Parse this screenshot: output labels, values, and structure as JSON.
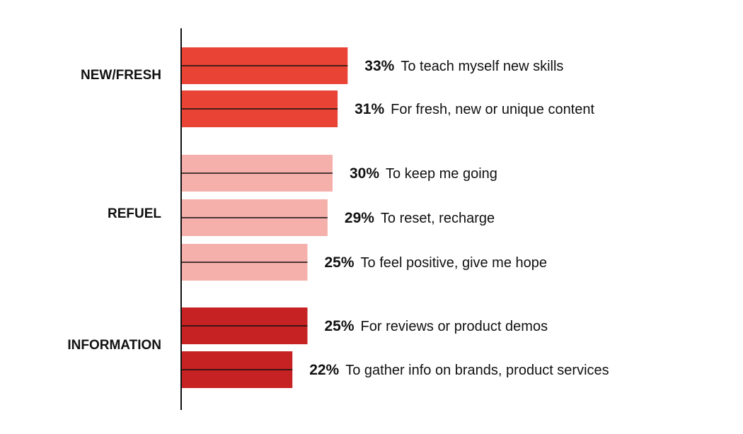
{
  "chart_data": {
    "type": "bar",
    "orientation": "horizontal",
    "unit": "%",
    "colors": {
      "NEW/FRESH": "#e94335",
      "REFUEL": "#f5b0ab",
      "INFORMATION": "#c62223",
      "axis": "#111111"
    },
    "groups": [
      {
        "name": "NEW/FRESH",
        "bars": [
          {
            "label": "To teach myself new skills",
            "value": 33,
            "value_label": "33%"
          },
          {
            "label": "For fresh, new or unique content",
            "value": 31,
            "value_label": "31%"
          }
        ]
      },
      {
        "name": "REFUEL",
        "bars": [
          {
            "label": "To keep me going",
            "value": 30,
            "value_label": "30%"
          },
          {
            "label": "To reset, recharge",
            "value": 29,
            "value_label": "29%"
          },
          {
            "label": "To feel positive, give me hope",
            "value": 25,
            "value_label": "25%"
          }
        ]
      },
      {
        "name": "INFORMATION",
        "bars": [
          {
            "label": "For reviews or product demos",
            "value": 25,
            "value_label": "25%"
          },
          {
            "label": "To gather info on brands, product services",
            "value": 22,
            "value_label": "22%"
          }
        ]
      }
    ]
  }
}
